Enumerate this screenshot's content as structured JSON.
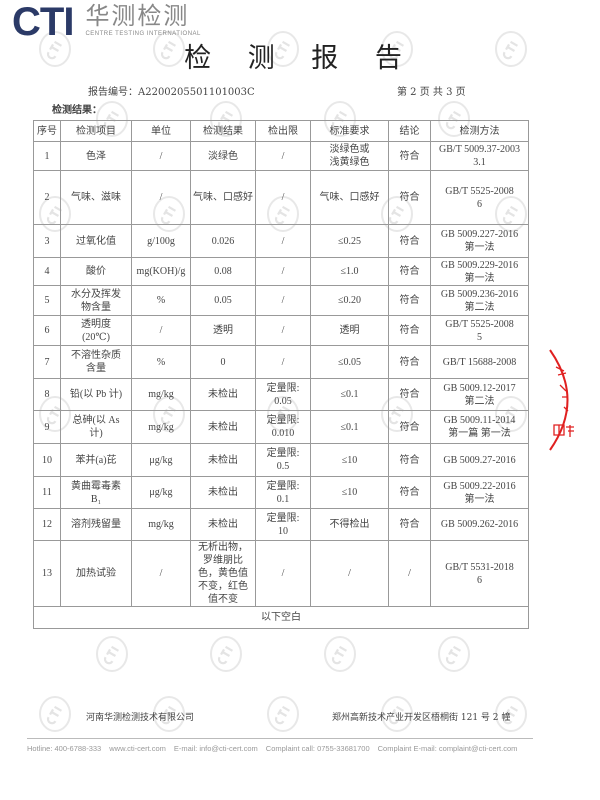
{
  "logo": {
    "brand": "CTI",
    "cn": "华测检测",
    "en": "CENTRE TESTING INTERNATIONAL"
  },
  "watermark": "CTI",
  "title": "检 测 报 告",
  "report_no": "报告编号：A2200205501101003C",
  "page": "第 2 页  共 3 页",
  "section": "检测结果：",
  "headers": [
    "序号",
    "检测项目",
    "单位",
    "检测结果",
    "检出限",
    "标准要求",
    "结论",
    "检测方法"
  ],
  "rows": [
    [
      "1",
      "色泽",
      "/",
      "淡绿色",
      "/",
      "淡绿色或\n浅黄绿色",
      "符合",
      "GB/T 5009.37-2003\n3.1"
    ],
    [
      "2",
      "气味、滋味",
      "/",
      "气味、口感好",
      "/",
      "气味、口感好",
      "符合",
      "GB/T 5525-2008\n6"
    ],
    [
      "3",
      "过氧化值",
      "g/100g",
      "0.026",
      "/",
      "≤0.25",
      "符合",
      "GB 5009.227-2016\n第一法"
    ],
    [
      "4",
      "酸价",
      "mg(KOH)/g",
      "0.08",
      "/",
      "≤1.0",
      "符合",
      "GB 5009.229-2016\n第一法"
    ],
    [
      "5",
      "水分及挥发\n物含量",
      "%",
      "0.05",
      "/",
      "≤0.20",
      "符合",
      "GB 5009.236-2016\n第二法"
    ],
    [
      "6",
      "透明度\n(20℃)",
      "/",
      "透明",
      "/",
      "透明",
      "符合",
      "GB/T 5525-2008\n5"
    ],
    [
      "7",
      "不溶性杂质\n含量",
      "%",
      "0",
      "/",
      "≤0.05",
      "符合",
      "GB/T 15688-2008"
    ],
    [
      "8",
      "铅(以 Pb 计)",
      "mg/kg",
      "未检出",
      "定量限:\n0.05",
      "≤0.1",
      "符合",
      "GB 5009.12-2017\n第二法"
    ],
    [
      "9",
      "总砷(以 As\n计)",
      "mg/kg",
      "未检出",
      "定量限:\n0.010",
      "≤0.1",
      "符合",
      "GB 5009.11-2014\n第一篇 第一法"
    ],
    [
      "10",
      "苯并(a)芘",
      "μg/kg",
      "未检出",
      "定量限:\n0.5",
      "≤10",
      "符合",
      "GB 5009.27-2016"
    ],
    [
      "11",
      "黄曲霉毒素\nB₁",
      "μg/kg",
      "未检出",
      "定量限:\n0.1",
      "≤10",
      "符合",
      "GB 5009.22-2016\n第一法"
    ],
    [
      "12",
      "溶剂残留量",
      "mg/kg",
      "未检出",
      "定量限:\n10",
      "不得检出",
      "符合",
      "GB 5009.262-2016"
    ],
    [
      "13",
      "加热试验",
      "/",
      "无析出物，\n罗维朋比\n色，黄色值\n不变，红色\n值不变",
      "/",
      "/",
      "/",
      "GB/T 5531-2018\n6"
    ]
  ],
  "blank_note": "以下空白",
  "footer": {
    "company": "河南华测检测技术有限公司",
    "address": "郑州高新技术产业开发区梧桐街 121 号 2 幢"
  },
  "contact": [
    "Hotline: 400-6788-333",
    "www.cti-cert.com",
    "E-mail: info@cti-cert.com",
    "Complaint call: 0755-33681700",
    "Complaint E-mail: complaint@cti-cert.com"
  ],
  "stamp": {
    "text": "有限公司 用章",
    "color": "#e02020"
  }
}
